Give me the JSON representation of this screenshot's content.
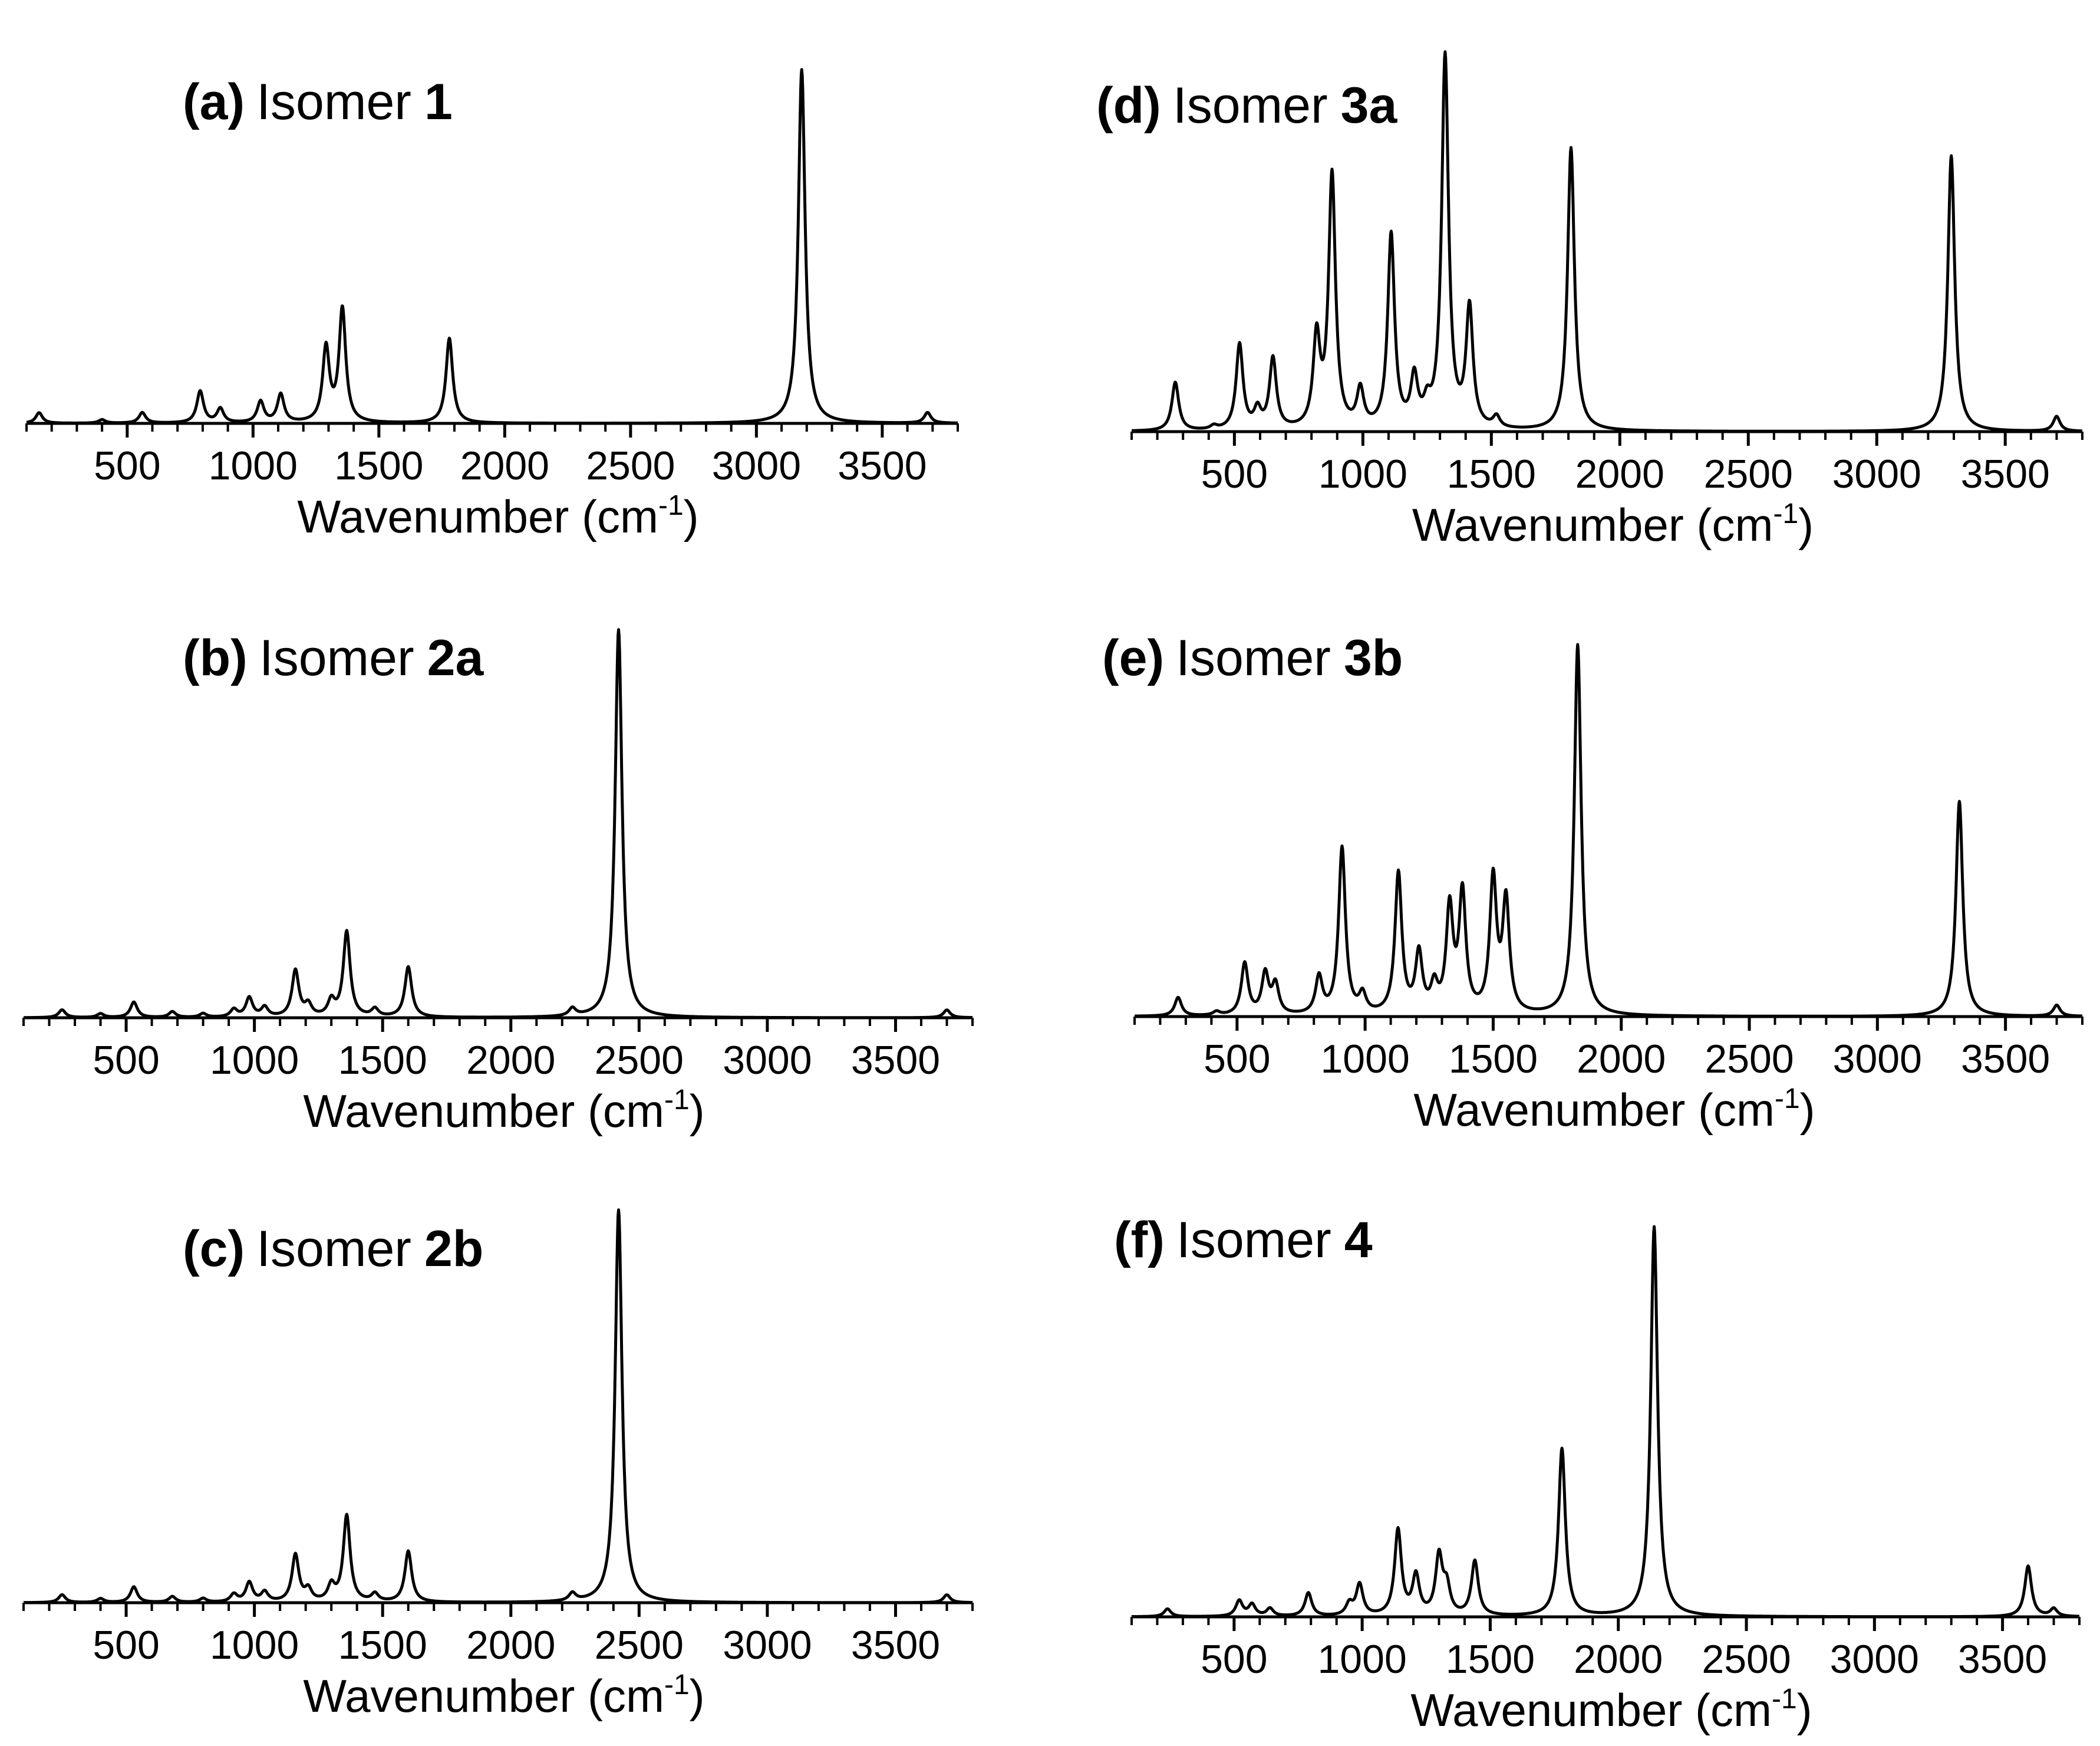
{
  "figure": {
    "panels": [
      {
        "id": "a",
        "label_prefix": "(a)",
        "label_word": "Isomer",
        "label_bold": "1"
      },
      {
        "id": "b",
        "label_prefix": "(b)",
        "label_word": "Isomer",
        "label_bold": "2a"
      },
      {
        "id": "c",
        "label_prefix": "(c)",
        "label_word": "Isomer",
        "label_bold": "2b"
      },
      {
        "id": "d",
        "label_prefix": "(d)",
        "label_word": "Isomer",
        "label_bold": "3a"
      },
      {
        "id": "e",
        "label_prefix": "(e)",
        "label_word": "Isomer",
        "label_bold": "3b"
      },
      {
        "id": "f",
        "label_prefix": "(f)",
        "label_word": "Isomer",
        "label_bold": "4"
      }
    ],
    "xlabel_main": "Wavenumber (cm",
    "xlabel_sup": "-1",
    "xlabel_close": ")",
    "line_color": "#000000"
  },
  "chart_data": [
    {
      "type": "line",
      "panel": "a",
      "title": "(a) Isomer 1",
      "xlabel": "Wavenumber (cm-1)",
      "ylabel": "",
      "xlim": [
        100,
        3800
      ],
      "ylim": [
        0,
        1
      ],
      "xticks": [
        500,
        1000,
        1500,
        2000,
        2500,
        3000,
        3500
      ],
      "xtick_labels": [
        "500",
        "1000",
        "1500",
        "2000",
        "2500",
        "3000",
        "3500"
      ],
      "peaks": [
        [
          150,
          0.03
        ],
        [
          400,
          0.01
        ],
        [
          560,
          0.03
        ],
        [
          790,
          0.09
        ],
        [
          870,
          0.04
        ],
        [
          1030,
          0.06
        ],
        [
          1110,
          0.08
        ],
        [
          1290,
          0.21
        ],
        [
          1355,
          0.32
        ],
        [
          1780,
          0.24
        ],
        [
          3180,
          1.0
        ],
        [
          3680,
          0.03
        ]
      ]
    },
    {
      "type": "line",
      "panel": "b",
      "title": "(b) Isomer 2a",
      "xlabel": "Wavenumber (cm-1)",
      "ylabel": "",
      "xlim": [
        100,
        3800
      ],
      "ylim": [
        0,
        1
      ],
      "xticks": [
        500,
        1000,
        1500,
        2000,
        2500,
        3000,
        3500
      ],
      "xtick_labels": [
        "500",
        "1000",
        "1500",
        "2000",
        "2500",
        "3000",
        "3500"
      ],
      "peaks": [
        [
          250,
          0.02
        ],
        [
          400,
          0.01
        ],
        [
          530,
          0.04
        ],
        [
          680,
          0.015
        ],
        [
          800,
          0.01
        ],
        [
          920,
          0.02
        ],
        [
          980,
          0.05
        ],
        [
          1040,
          0.025
        ],
        [
          1160,
          0.12
        ],
        [
          1210,
          0.03
        ],
        [
          1300,
          0.04
        ],
        [
          1360,
          0.22
        ],
        [
          1470,
          0.02
        ],
        [
          1600,
          0.13
        ],
        [
          2240,
          0.02
        ],
        [
          2420,
          1.0
        ],
        [
          3700,
          0.02
        ]
      ]
    },
    {
      "type": "line",
      "panel": "c",
      "title": "(c) Isomer 2b",
      "xlabel": "Wavenumber (cm-1)",
      "ylabel": "",
      "xlim": [
        100,
        3800
      ],
      "ylim": [
        0,
        1
      ],
      "xticks": [
        500,
        1000,
        1500,
        2000,
        2500,
        3000,
        3500
      ],
      "xtick_labels": [
        "500",
        "1000",
        "1500",
        "2000",
        "2500",
        "3000",
        "3500"
      ],
      "peaks": [
        [
          250,
          0.02
        ],
        [
          400,
          0.01
        ],
        [
          530,
          0.04
        ],
        [
          680,
          0.015
        ],
        [
          800,
          0.01
        ],
        [
          920,
          0.02
        ],
        [
          980,
          0.05
        ],
        [
          1040,
          0.025
        ],
        [
          1160,
          0.12
        ],
        [
          1210,
          0.03
        ],
        [
          1300,
          0.04
        ],
        [
          1360,
          0.22
        ],
        [
          1470,
          0.02
        ],
        [
          1600,
          0.13
        ],
        [
          2240,
          0.02
        ],
        [
          2420,
          1.0
        ],
        [
          3700,
          0.02
        ]
      ]
    },
    {
      "type": "line",
      "panel": "d",
      "title": "(d) Isomer 3a",
      "xlabel": "Wavenumber (cm-1)",
      "ylabel": "",
      "xlim": [
        100,
        3800
      ],
      "ylim": [
        0,
        1
      ],
      "xticks": [
        500,
        1000,
        1500,
        2000,
        2500,
        3000,
        3500
      ],
      "xtick_labels": [
        "500",
        "1000",
        "1500",
        "2000",
        "2500",
        "3000",
        "3500"
      ],
      "peaks": [
        [
          270,
          0.13
        ],
        [
          420,
          0.01
        ],
        [
          520,
          0.23
        ],
        [
          590,
          0.05
        ],
        [
          650,
          0.19
        ],
        [
          820,
          0.24
        ],
        [
          880,
          0.68
        ],
        [
          990,
          0.1
        ],
        [
          1110,
          0.52
        ],
        [
          1200,
          0.13
        ],
        [
          1250,
          0.05
        ],
        [
          1320,
          1.0
        ],
        [
          1415,
          0.32
        ],
        [
          1520,
          0.03
        ],
        [
          1810,
          0.76
        ],
        [
          3290,
          0.74
        ],
        [
          3700,
          0.04
        ]
      ]
    },
    {
      "type": "line",
      "panel": "e",
      "title": "(e) Isomer 3b",
      "xlabel": "Wavenumber (cm-1)",
      "ylabel": "",
      "xlim": [
        100,
        3800
      ],
      "ylim": [
        0,
        1
      ],
      "xticks": [
        500,
        1000,
        1500,
        2000,
        2500,
        3000,
        3500
      ],
      "xtick_labels": [
        "500",
        "1000",
        "1500",
        "2000",
        "2500",
        "3000",
        "3500"
      ],
      "peaks": [
        [
          270,
          0.05
        ],
        [
          420,
          0.01
        ],
        [
          530,
          0.14
        ],
        [
          610,
          0.11
        ],
        [
          650,
          0.08
        ],
        [
          820,
          0.1
        ],
        [
          910,
          0.45
        ],
        [
          990,
          0.05
        ],
        [
          1130,
          0.38
        ],
        [
          1210,
          0.16
        ],
        [
          1270,
          0.07
        ],
        [
          1330,
          0.28
        ],
        [
          1380,
          0.32
        ],
        [
          1500,
          0.36
        ],
        [
          1550,
          0.3
        ],
        [
          1830,
          1.0
        ],
        [
          3320,
          0.58
        ],
        [
          3700,
          0.03
        ]
      ]
    },
    {
      "type": "line",
      "panel": "f",
      "title": "(f) Isomer 4",
      "xlabel": "Wavenumber (cm-1)",
      "ylabel": "",
      "xlim": [
        100,
        3800
      ],
      "ylim": [
        0,
        1
      ],
      "xticks": [
        500,
        1000,
        1500,
        2000,
        2500,
        3000,
        3500
      ],
      "xtick_labels": [
        "500",
        "1000",
        "1500",
        "2000",
        "2500",
        "3000",
        "3500"
      ],
      "peaks": [
        [
          240,
          0.02
        ],
        [
          520,
          0.04
        ],
        [
          570,
          0.03
        ],
        [
          640,
          0.02
        ],
        [
          790,
          0.06
        ],
        [
          950,
          0.03
        ],
        [
          990,
          0.08
        ],
        [
          1140,
          0.22
        ],
        [
          1210,
          0.1
        ],
        [
          1300,
          0.15
        ],
        [
          1330,
          0.07
        ],
        [
          1440,
          0.14
        ],
        [
          1780,
          0.43
        ],
        [
          2140,
          1.0
        ],
        [
          3600,
          0.13
        ],
        [
          3700,
          0.02
        ]
      ]
    }
  ]
}
